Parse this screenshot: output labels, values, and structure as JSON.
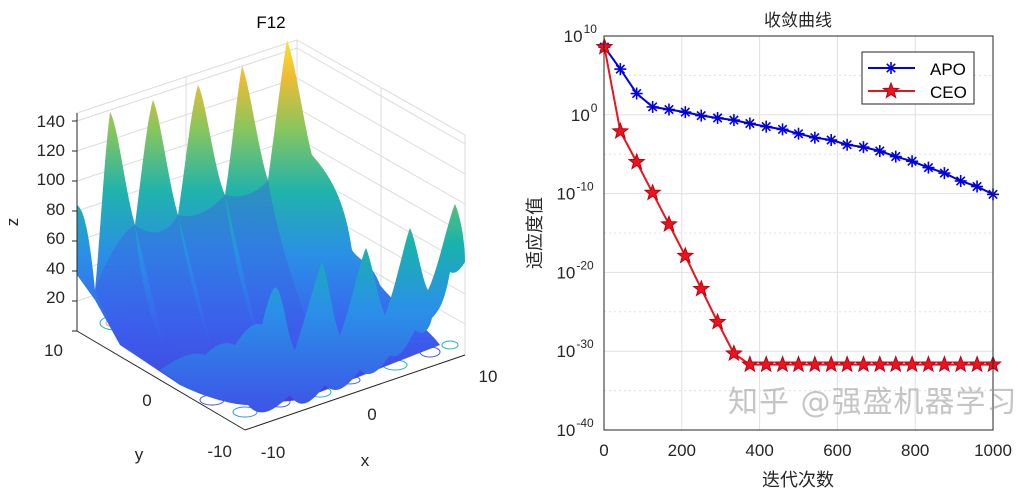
{
  "chart_data": [
    {
      "type": "surface",
      "title": "F12",
      "xlabel": "x",
      "ylabel": "y",
      "zlabel": "z",
      "x_ticks": [
        "-10",
        "0",
        "10"
      ],
      "y_ticks": [
        "10",
        "0",
        "-10"
      ],
      "z_ticks": [
        "20",
        "40",
        "60",
        "80",
        "100",
        "120",
        "140"
      ],
      "xlim": [
        -10,
        10
      ],
      "ylim": [
        -10,
        10
      ],
      "zlim": [
        0,
        150
      ],
      "colormap": "parula",
      "contour_on_floor": true
    },
    {
      "type": "line",
      "title": "收敛曲线",
      "xlabel": "迭代次数",
      "ylabel": "适应度值",
      "xlim": [
        0,
        1000
      ],
      "ylim_log10": [
        -40,
        10
      ],
      "yscale": "log",
      "x_ticks": [
        "0",
        "200",
        "400",
        "600",
        "800",
        "1000"
      ],
      "y_ticks": [
        {
          "base": "10",
          "exp": "10"
        },
        {
          "base": "10",
          "exp": "0"
        },
        {
          "base": "10",
          "exp": "-10"
        },
        {
          "base": "10",
          "exp": "-20"
        },
        {
          "base": "10",
          "exp": "-30"
        },
        {
          "base": "10",
          "exp": "-40"
        }
      ],
      "grid": true,
      "legend_position": "top-right",
      "x": [
        1,
        42,
        84,
        125,
        167,
        209,
        250,
        292,
        334,
        375,
        417,
        459,
        500,
        542,
        584,
        625,
        667,
        709,
        750,
        792,
        834,
        875,
        917,
        959,
        1000
      ],
      "series": [
        {
          "name": "APO",
          "color": "#0000e0",
          "marker": "asterisk",
          "log10_values": [
            8.6,
            5.8,
            2.7,
            1.0,
            0.67,
            0.34,
            -0.1,
            -0.4,
            -0.67,
            -1.1,
            -1.5,
            -1.85,
            -2.4,
            -2.9,
            -3.2,
            -3.8,
            -4.1,
            -4.6,
            -5.3,
            -5.9,
            -6.7,
            -7.4,
            -8.4,
            -9.1,
            -10.1
          ]
        },
        {
          "name": "CEO",
          "color": "#e8141e",
          "marker": "star",
          "log10_values": [
            8.6,
            -2.1,
            -6.0,
            -9.9,
            -13.9,
            -17.9,
            -22.1,
            -26.3,
            -30.3,
            -31.7,
            -31.7,
            -31.7,
            -31.7,
            -31.7,
            -31.7,
            -31.7,
            -31.7,
            -31.7,
            -31.7,
            -31.7,
            -31.7,
            -31.7,
            -31.7,
            -31.7,
            -31.7
          ]
        }
      ]
    }
  ],
  "watermark": "知乎 @强盛机器学习"
}
